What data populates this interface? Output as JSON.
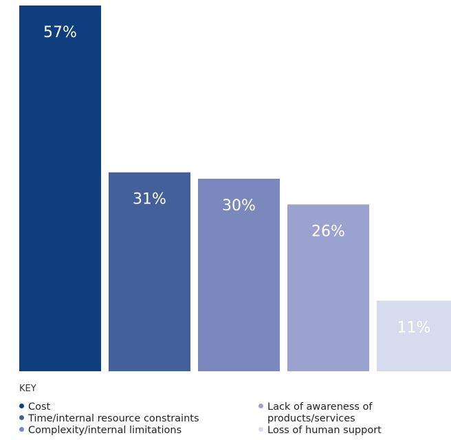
{
  "chart_data": {
    "type": "bar",
    "categories": [
      "Cost",
      "Time/internal resource constraints",
      "Complexity/internal limitations",
      "Lack of awareness of products/services",
      "Loss of human support"
    ],
    "values": [
      57,
      31,
      30,
      26,
      11
    ],
    "data_labels": [
      "57%",
      "31%",
      "30%",
      "26%",
      "11%"
    ],
    "ylim": [
      0,
      57
    ],
    "colors": [
      "#0f3e7e",
      "#43609a",
      "#7b88be",
      "#9aa3cf",
      "#d8dbee"
    ],
    "label_colors": [
      "#ffffff",
      "#ffffff",
      "#ffffff",
      "#ffffff",
      "#ffffff"
    ],
    "grid": false,
    "legend": {
      "title": "KEY",
      "placement": "bottom",
      "items": [
        {
          "label_lines": [
            "Cost"
          ],
          "color": "#0f3e7e"
        },
        {
          "label_lines": [
            "Time/internal resource constraints"
          ],
          "color": "#43609a"
        },
        {
          "label_lines": [
            "Complexity/internal limitations"
          ],
          "color": "#7b88be"
        },
        {
          "label_lines": [
            "Lack of awareness of",
            "products/services"
          ],
          "color": "#9aa3cf"
        },
        {
          "label_lines": [
            "Loss of human support"
          ],
          "color": "#d8dbee"
        }
      ]
    }
  }
}
